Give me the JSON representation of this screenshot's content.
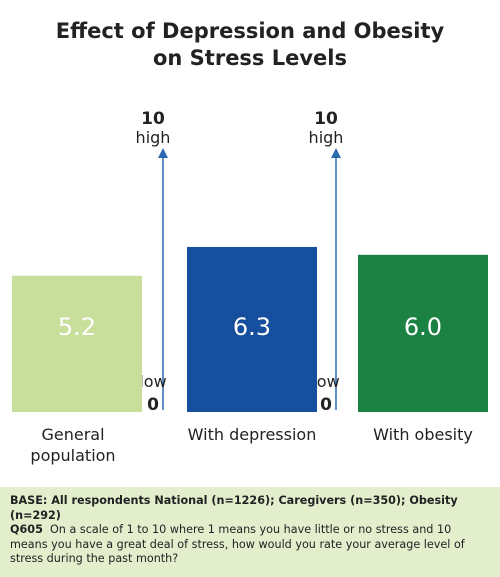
{
  "chart_data": {
    "type": "bar",
    "title": "Effect of Depression and Obesity on Stress Levels",
    "categories": [
      "General population",
      "With depression",
      "With obesity"
    ],
    "values": [
      5.2,
      6.3,
      6.0
    ],
    "value_labels": [
      "5.2",
      "6.3",
      "6.0"
    ],
    "colors": [
      "#c8df9b",
      "#164f9e",
      "#1b8243"
    ],
    "ylim": [
      0,
      10
    ],
    "yticks": [
      0,
      10
    ],
    "ytick_words": [
      "low",
      "high"
    ],
    "grid": false
  },
  "footnote": {
    "base": "BASE: All respondents National (n=1226); Caregivers (n=350); Obesity (n=292)",
    "question_id": "Q605",
    "question": "On a scale of 1 to 10 where 1 means you have little or no stress and 10 means you have a great deal of stress, how would you rate your average level of stress during the past month?"
  }
}
